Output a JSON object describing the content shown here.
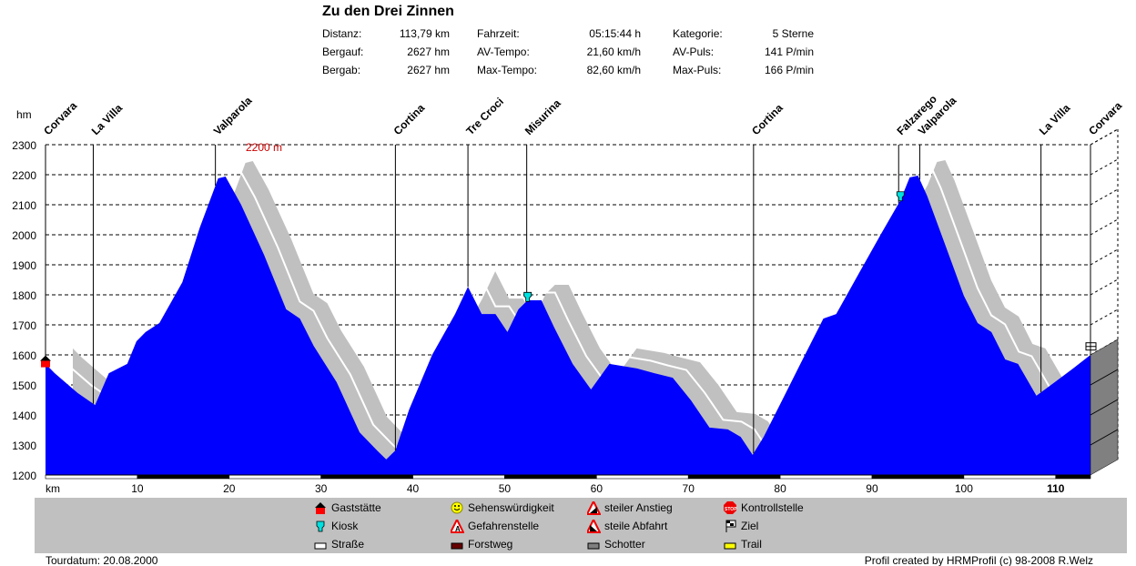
{
  "header": {
    "title": "Zu den Drei Zinnen",
    "stats": [
      [
        {
          "label": "Distanz:",
          "value": "113,79 km"
        },
        {
          "label": "Fahrzeit:",
          "value": "05:15:44 h"
        },
        {
          "label": "Kategorie:",
          "value": "5 Sterne"
        }
      ],
      [
        {
          "label": "Bergauf:",
          "value": "2627 hm"
        },
        {
          "label": "AV-Tempo:",
          "value": "21,60 km/h"
        },
        {
          "label": "AV-Puls:",
          "value": "141 P/min"
        }
      ],
      [
        {
          "label": "Bergab:",
          "value": "2627 hm"
        },
        {
          "label": "Max-Tempo:",
          "value": "82,60 km/h"
        },
        {
          "label": "Max-Puls:",
          "value": "166 P/min"
        }
      ]
    ]
  },
  "chart_data": {
    "type": "area",
    "title": "Zu den Drei Zinnen",
    "xlabel": "km",
    "ylabel": "hm",
    "xlim": [
      0,
      113.79
    ],
    "ylim": [
      1200,
      2300
    ],
    "x_ticks": [
      10,
      20,
      30,
      40,
      50,
      60,
      70,
      80,
      90,
      100,
      110
    ],
    "y_ticks": [
      1200,
      1300,
      1400,
      1500,
      1600,
      1700,
      1800,
      1900,
      2000,
      2100,
      2200,
      2300
    ],
    "grid": true,
    "annotation": "2200 m",
    "surface_segments": [
      {
        "from": 0,
        "to": 10,
        "type": "Straße"
      },
      {
        "from": 10,
        "to": 20,
        "type": "Forstweg-dark"
      },
      {
        "from": 20,
        "to": 30,
        "type": "Straße"
      },
      {
        "from": 30,
        "to": 40,
        "type": "Forstweg-dark"
      },
      {
        "from": 40,
        "to": 50,
        "type": "Straße"
      },
      {
        "from": 50,
        "to": 60,
        "type": "Forstweg-dark"
      },
      {
        "from": 60,
        "to": 70,
        "type": "Straße"
      },
      {
        "from": 70,
        "to": 80,
        "type": "Forstweg-dark"
      },
      {
        "from": 80,
        "to": 90,
        "type": "Straße"
      },
      {
        "from": 90,
        "to": 100,
        "type": "Forstweg-dark"
      },
      {
        "from": 100,
        "to": 110,
        "type": "Straße"
      },
      {
        "from": 110,
        "to": 113.79,
        "type": "Forstweg-dark"
      }
    ],
    "profile": [
      [
        0,
        1570
      ],
      [
        1.0,
        1539
      ],
      [
        3.5,
        1473
      ],
      [
        5.4,
        1433
      ],
      [
        6.9,
        1539
      ],
      [
        8.9,
        1570
      ],
      [
        9.9,
        1645
      ],
      [
        10.9,
        1676
      ],
      [
        12.4,
        1706
      ],
      [
        14.9,
        1842
      ],
      [
        16.8,
        2024
      ],
      [
        18.8,
        2188
      ],
      [
        19.6,
        2194
      ],
      [
        21.3,
        2100
      ],
      [
        23.8,
        1933
      ],
      [
        26.2,
        1752
      ],
      [
        27.7,
        1721
      ],
      [
        29.2,
        1630
      ],
      [
        31.7,
        1509
      ],
      [
        34.2,
        1342
      ],
      [
        36.1,
        1282
      ],
      [
        37.1,
        1252
      ],
      [
        38.1,
        1282
      ],
      [
        39.6,
        1418
      ],
      [
        42.1,
        1600
      ],
      [
        44.6,
        1736
      ],
      [
        46.0,
        1827
      ],
      [
        47.5,
        1736
      ],
      [
        49.0,
        1736
      ],
      [
        50.3,
        1676
      ],
      [
        51.5,
        1752
      ],
      [
        52.5,
        1782
      ],
      [
        54.0,
        1782
      ],
      [
        55.4,
        1691
      ],
      [
        57.4,
        1570
      ],
      [
        59.4,
        1485
      ],
      [
        61.4,
        1570
      ],
      [
        64.4,
        1555
      ],
      [
        66.3,
        1539
      ],
      [
        68.3,
        1524
      ],
      [
        70.3,
        1448
      ],
      [
        72.3,
        1358
      ],
      [
        74.3,
        1352
      ],
      [
        75.7,
        1327
      ],
      [
        77.0,
        1267
      ],
      [
        78.2,
        1327
      ],
      [
        80.2,
        1448
      ],
      [
        82.2,
        1570
      ],
      [
        84.7,
        1721
      ],
      [
        86.1,
        1736
      ],
      [
        88.6,
        1873
      ],
      [
        91.1,
        2009
      ],
      [
        93.1,
        2115
      ],
      [
        94.1,
        2191
      ],
      [
        95.0,
        2197
      ],
      [
        96.0,
        2130
      ],
      [
        98.0,
        1964
      ],
      [
        100.0,
        1797
      ],
      [
        101.5,
        1706
      ],
      [
        103.0,
        1676
      ],
      [
        104.5,
        1585
      ],
      [
        105.9,
        1570
      ],
      [
        107.9,
        1464
      ],
      [
        109.9,
        1509
      ],
      [
        111.9,
        1555
      ],
      [
        113.79,
        1600
      ]
    ],
    "waypoints": [
      {
        "name": "Corvara",
        "km": 0
      },
      {
        "name": "La Villa",
        "km": 5.2
      },
      {
        "name": "Valparola",
        "km": 18.5
      },
      {
        "name": "Cortina",
        "km": 38.1
      },
      {
        "name": "Tre Croci",
        "km": 46.0
      },
      {
        "name": "Misurina",
        "km": 52.4
      },
      {
        "name": "Cortina",
        "km": 77.1
      },
      {
        "name": "Falzarego",
        "km": 92.9
      },
      {
        "name": "Valparola",
        "km": 95.2
      },
      {
        "name": "La Villa",
        "km": 108.4
      },
      {
        "name": "Corvara",
        "km": 113.79
      }
    ],
    "markers": [
      {
        "type": "Gaststätte",
        "km": 0,
        "m": 1580
      },
      {
        "type": "Kiosk",
        "km": 52.5,
        "m": 1790
      },
      {
        "type": "Kiosk",
        "km": 93.1,
        "m": 2125
      },
      {
        "type": "Ziel",
        "km": 113.79,
        "m": 1610
      }
    ]
  },
  "colors": {
    "profile": "#0000ff",
    "shadow": "#c0c0c0",
    "annotation": "#cc0000",
    "face": "#808080"
  },
  "legend": [
    {
      "label": "Gaststätte",
      "icon": "house-icon"
    },
    {
      "label": "Kiosk",
      "icon": "kiosk-icon"
    },
    {
      "label": "Straße",
      "icon": "road-icon"
    },
    {
      "label": "Sehenswürdigkeit",
      "icon": "smiley-icon"
    },
    {
      "label": "Gefahrenstelle",
      "icon": "warning-icon"
    },
    {
      "label": "Forstweg",
      "icon": "forest-road-icon"
    },
    {
      "label": "steiler Anstieg",
      "icon": "steep-climb-icon"
    },
    {
      "label": "steile Abfahrt",
      "icon": "steep-descent-icon"
    },
    {
      "label": "Schotter",
      "icon": "gravel-icon"
    },
    {
      "label": "Kontrollstelle",
      "icon": "stop-icon"
    },
    {
      "label": "Ziel",
      "icon": "finish-flag-icon"
    },
    {
      "label": "Trail",
      "icon": "trail-icon"
    }
  ],
  "footer": {
    "date": "Tourdatum: 20.08.2000",
    "credit": "Profil created by HRMProfil (c) 98-2008 R.Welz"
  }
}
